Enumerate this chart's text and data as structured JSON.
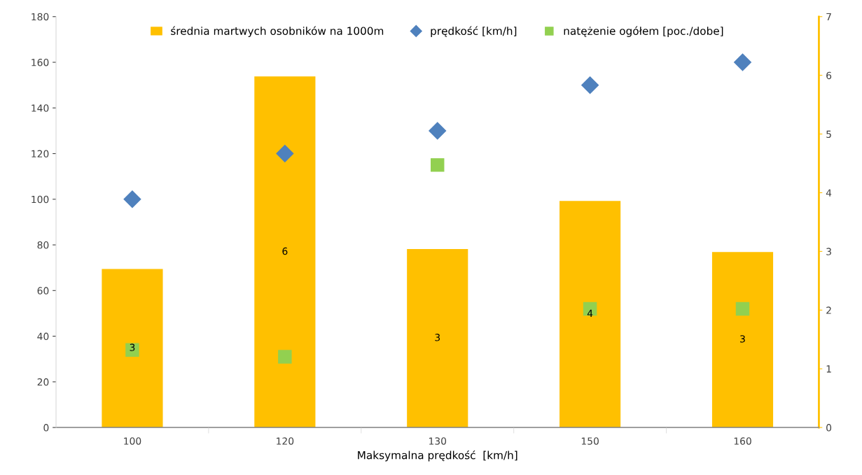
{
  "chart_data": {
    "type": "bar",
    "xlabel": "Maksymalna prędkość  [km/h]",
    "categories": [
      "100",
      "120",
      "130",
      "150",
      "160"
    ],
    "series": [
      {
        "name": "średnia martwych osobników na 1000m",
        "axis": "y2",
        "color": "#ffc000",
        "values": [
          2.7,
          5.98,
          3.04,
          3.86,
          2.99
        ],
        "value_labels": [
          "3",
          "6",
          "3",
          "4",
          "3"
        ]
      },
      {
        "name": "prędkość [km/h]",
        "type": "scatter",
        "marker": "diamond",
        "color": "#4f81bd",
        "values": [
          100,
          120,
          130,
          150,
          160
        ]
      },
      {
        "name": "natężenie ogółem [poc./dobe]",
        "type": "scatter",
        "marker": "square",
        "color": "#92d050",
        "values": [
          34,
          31,
          115,
          52,
          52
        ]
      }
    ],
    "ylim": [
      0,
      180
    ],
    "yticks": [
      0,
      20,
      40,
      60,
      80,
      100,
      120,
      140,
      160,
      180
    ],
    "y2lim": [
      0,
      7
    ],
    "y2ticks": [
      0,
      1,
      2,
      3,
      4,
      5,
      6,
      7
    ],
    "grid": false,
    "legend": "top"
  }
}
